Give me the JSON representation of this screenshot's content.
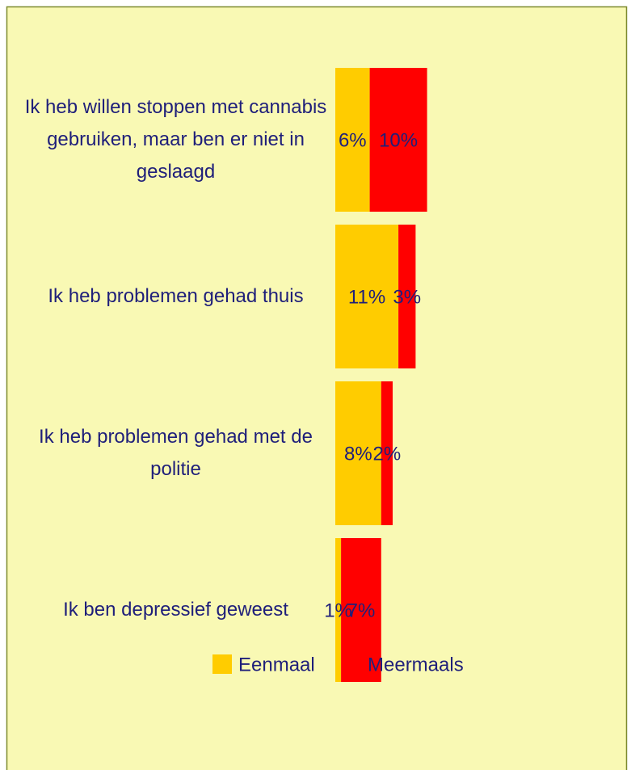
{
  "chart_data": {
    "type": "stacked-bar-horizontal",
    "categories": [
      "Ik heb willen stoppen met cannabis gebruiken, maar ben er niet in geslaagd",
      "Ik heb problemen gehad thuis",
      "Ik heb problemen gehad met de politie",
      "Ik ben depressief geweest"
    ],
    "series": [
      {
        "name": "Eenmaal",
        "color": "#ffcc00",
        "values": [
          6,
          11,
          8,
          1
        ],
        "value_labels": [
          "6%",
          "11%",
          "8%",
          "1%"
        ]
      },
      {
        "name": "Meermaals",
        "color": "#ff0000",
        "values": [
          10,
          3,
          2,
          7
        ],
        "value_labels": [
          "10%",
          "3%",
          "2%",
          "7%"
        ]
      }
    ],
    "legend": "bottom"
  }
}
